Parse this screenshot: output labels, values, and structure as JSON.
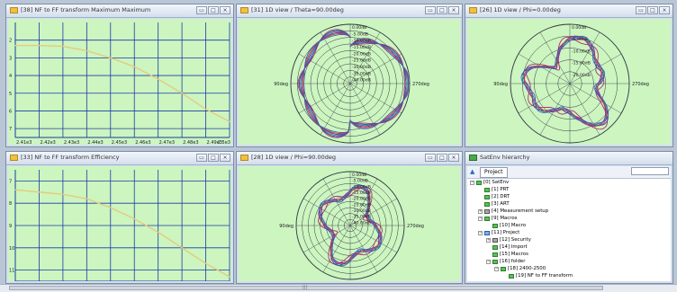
{
  "windows": {
    "max_plot": {
      "title": "[38] NF to FF transform Maximum Maximum",
      "x_ticks": [
        "2.41e3",
        "2.42e3",
        "2.43e3",
        "2.44e3",
        "2.45e3",
        "2.46e3",
        "2.47e3",
        "2.48e3",
        "2.49e3",
        "2.5e3"
      ],
      "y_ticks": [
        "2",
        "3",
        "4",
        "5",
        "6",
        "7"
      ]
    },
    "eff_plot": {
      "title": "[33] NF to FF transform Efficiency",
      "y_ticks": [
        "7",
        "8",
        "9",
        "10",
        "11"
      ]
    },
    "theta_view": {
      "title": "[31] 1D view / Theta=90.00deg",
      "left_label": "90deg",
      "right_label": "270deg",
      "rings": [
        "0.00dB",
        "-5.00dB",
        "-10.00dB",
        "-15.00dB",
        "-20.00dB",
        "-25.00dB",
        "-30.00dB",
        "-35.00dB",
        "-40.00dB"
      ]
    },
    "phi0_view": {
      "title": "[26] 1D view / Phi=0.00deg",
      "left_label": "90deg",
      "right_label": "270deg",
      "rings": [
        "0.00dB",
        "-5.00dB",
        "-10.00dB",
        "-15.00dB",
        "-20.00dB"
      ]
    },
    "phi90_view": {
      "title": "[28] 1D view / Phi=90.00deg",
      "left_label": "90deg",
      "right_label": "270deg",
      "rings": [
        "0.00dB",
        "-5.00dB",
        "-10.00dB",
        "-15.00dB",
        "-20.00dB",
        "-25.00dB",
        "-30.00dB",
        "-35.00dB",
        "-40.00dB"
      ]
    },
    "hierarchy": {
      "title": "SatEnv hierarchy",
      "tab": "Project",
      "search_value": "",
      "nodes": [
        {
          "label": "[0] SatEnv",
          "indent": 0,
          "toggle": "−",
          "icon": "green"
        },
        {
          "label": "[1] PRT",
          "indent": 1,
          "toggle": "",
          "icon": "green"
        },
        {
          "label": "[2] DRT",
          "indent": 1,
          "toggle": "",
          "icon": "green"
        },
        {
          "label": "[3] ART",
          "indent": 1,
          "toggle": "",
          "icon": "green"
        },
        {
          "label": "[4] Measurement setup",
          "indent": 1,
          "toggle": "+",
          "icon": "gray"
        },
        {
          "label": "[9] Macros",
          "indent": 1,
          "toggle": "−",
          "icon": "green"
        },
        {
          "label": "[10] Macro",
          "indent": 2,
          "toggle": "",
          "icon": "green"
        },
        {
          "label": "[11] Project",
          "indent": 1,
          "toggle": "−",
          "icon": "blue"
        },
        {
          "label": "[12] Security",
          "indent": 2,
          "toggle": "+",
          "icon": "gray"
        },
        {
          "label": "[14] Import",
          "indent": 2,
          "toggle": "",
          "icon": "green"
        },
        {
          "label": "[15] Macros",
          "indent": 2,
          "toggle": "",
          "icon": "green"
        },
        {
          "label": "[16] folder",
          "indent": 2,
          "toggle": "−",
          "icon": "green"
        },
        {
          "label": "[18] 2400-2500",
          "indent": 3,
          "toggle": "−",
          "icon": "green"
        },
        {
          "label": "[19] NF to FF transform",
          "indent": 4,
          "toggle": "",
          "icon": "green"
        }
      ]
    }
  },
  "window_buttons": {
    "minimize": "▭",
    "maximize": "□",
    "close": "×"
  },
  "colors": {
    "plot_bg": "#ccf5c0",
    "grid": "#1a3aa8",
    "curve": "#e8c878"
  },
  "chart_data": [
    {
      "type": "line",
      "title": "",
      "x": [
        2410,
        2420,
        2430,
        2440,
        2450,
        2460,
        2470,
        2480,
        2490,
        2500
      ],
      "series": [
        {
          "values": [
            2.3,
            2.3,
            2.35,
            2.6,
            3.0,
            3.5,
            4.2,
            5.0,
            5.9,
            6.6
          ]
        }
      ],
      "ylim": [
        1,
        7.5
      ],
      "grid": true
    },
    {
      "type": "line",
      "title": "",
      "x": [
        2410,
        2420,
        2430,
        2440,
        2450,
        2460,
        2470,
        2480,
        2490,
        2500
      ],
      "series": [
        {
          "values": [
            7.4,
            7.5,
            7.6,
            7.8,
            8.2,
            8.7,
            9.3,
            10.0,
            10.7,
            11.3
          ]
        }
      ],
      "ylim": [
        6.5,
        11.5
      ],
      "grid": true
    }
  ]
}
